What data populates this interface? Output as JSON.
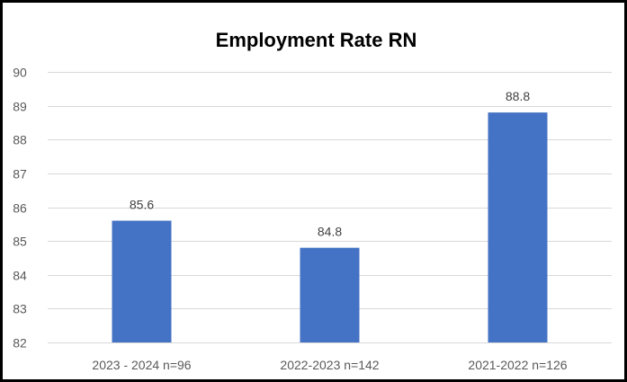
{
  "chart_data": {
    "type": "bar",
    "title": "Employment Rate RN",
    "xlabel": "",
    "ylabel": "",
    "categories": [
      "2023 - 2024 n=96",
      "2022-2023 n=142",
      "2021-2022 n=126"
    ],
    "values": [
      85.6,
      84.8,
      88.8
    ],
    "data_labels": [
      "85.6",
      "84.8",
      "88.8"
    ],
    "ylim": [
      82,
      90
    ],
    "yticks": [
      82,
      83,
      84,
      85,
      86,
      87,
      88,
      89,
      90
    ],
    "grid": true,
    "legend": "none",
    "bar_color": "#4472C4",
    "grid_color": "#D9D9D9",
    "frame_color": "#000000"
  }
}
